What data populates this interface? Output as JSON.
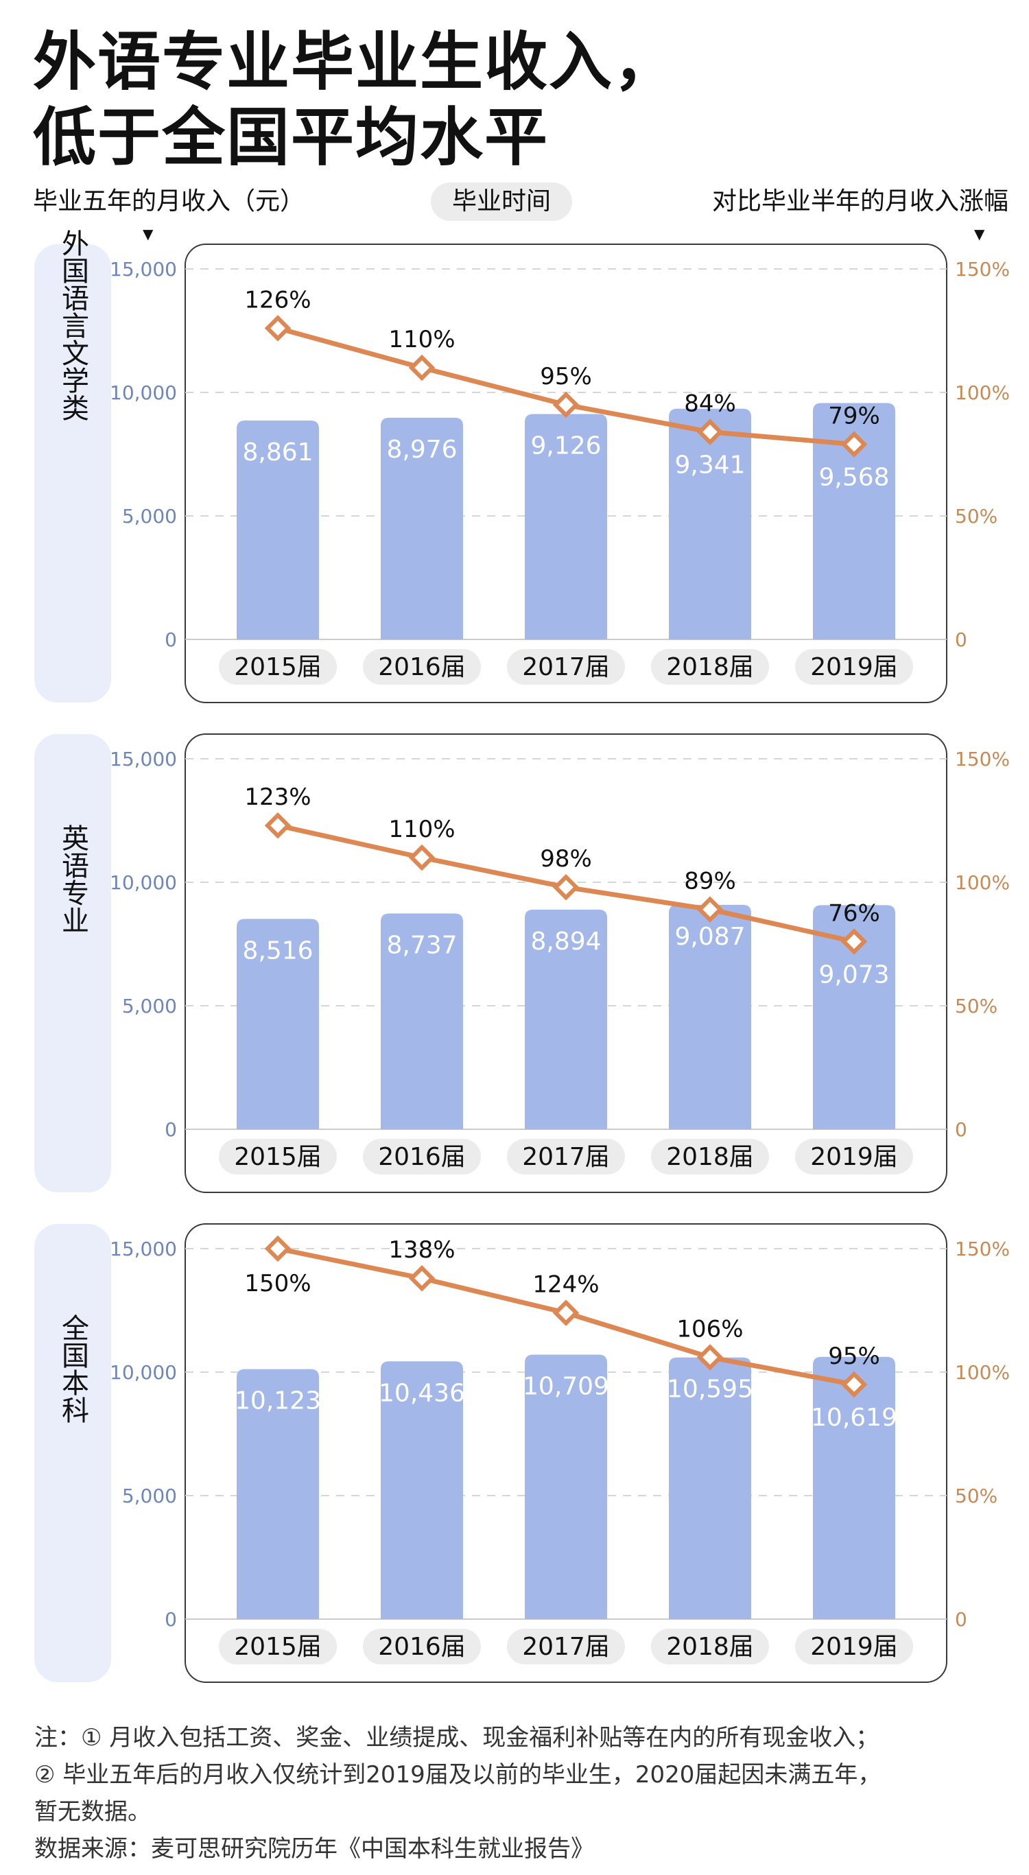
{
  "title": [
    "外语专业毕业生收入，",
    "低于全国平均水平"
  ],
  "header": {
    "left_label": "毕业五年的月收入（元）",
    "middle_label": "毕业时间",
    "right_label": "对比毕业半年的月收入涨幅",
    "arrow": "▼"
  },
  "colors": {
    "bar": "#a3b8e8",
    "line": "#dd8753",
    "left_axis": "#6f86b9",
    "right_axis": "#c78a56",
    "panel_label_bg": "#eaeefa",
    "category_pill": "#ececec"
  },
  "chart_data": [
    {
      "type": "bar",
      "panel_label": "外国语言文学类",
      "categories": [
        "2015届",
        "2016届",
        "2017届",
        "2018届",
        "2019届"
      ],
      "series": [
        {
          "name": "",
          "type": "bar",
          "axis": "left",
          "values": [
            8861,
            8976,
            9126,
            9341,
            9568
          ],
          "labels": [
            "8,861",
            "8,976",
            "9,126",
            "9,341",
            "9,568"
          ]
        },
        {
          "name": "",
          "type": "line",
          "axis": "right",
          "values": [
            126,
            110,
            95,
            84,
            79
          ],
          "labels": [
            "126%",
            "110%",
            "95%",
            "84%",
            "79%"
          ]
        }
      ],
      "y_left": {
        "range": [
          0,
          15000
        ],
        "ticks": [
          "0",
          "5,000",
          "10,000",
          "15,000"
        ]
      },
      "y_right": {
        "range": [
          0,
          150
        ],
        "ticks": [
          "0",
          "50%",
          "100%",
          "150%"
        ]
      },
      "grid": true
    },
    {
      "type": "bar",
      "panel_label": "英语专业",
      "categories": [
        "2015届",
        "2016届",
        "2017届",
        "2018届",
        "2019届"
      ],
      "series": [
        {
          "name": "",
          "type": "bar",
          "axis": "left",
          "values": [
            8516,
            8737,
            8894,
            9087,
            9073
          ],
          "labels": [
            "8,516",
            "8,737",
            "8,894",
            "9,087",
            "9,073"
          ]
        },
        {
          "name": "",
          "type": "line",
          "axis": "right",
          "values": [
            123,
            110,
            98,
            89,
            76
          ],
          "labels": [
            "123%",
            "110%",
            "98%",
            "89%",
            "76%"
          ]
        }
      ],
      "y_left": {
        "range": [
          0,
          15000
        ],
        "ticks": [
          "0",
          "5,000",
          "10,000",
          "15,000"
        ]
      },
      "y_right": {
        "range": [
          0,
          150
        ],
        "ticks": [
          "0",
          "50%",
          "100%",
          "150%"
        ]
      },
      "grid": true
    },
    {
      "type": "bar",
      "panel_label": "全国本科",
      "categories": [
        "2015届",
        "2016届",
        "2017届",
        "2018届",
        "2019届"
      ],
      "series": [
        {
          "name": "",
          "type": "bar",
          "axis": "left",
          "values": [
            10123,
            10436,
            10709,
            10595,
            10619
          ],
          "labels": [
            "10,123",
            "10,436",
            "10,709",
            "10,595",
            "10,619"
          ]
        },
        {
          "name": "",
          "type": "line",
          "axis": "right",
          "values": [
            150,
            138,
            124,
            106,
            95
          ],
          "labels": [
            "150%",
            "138%",
            "124%",
            "106%",
            "95%"
          ]
        }
      ],
      "y_left": {
        "range": [
          0,
          15000
        ],
        "ticks": [
          "0",
          "5,000",
          "10,000",
          "15,000"
        ]
      },
      "y_right": {
        "range": [
          0,
          150
        ],
        "ticks": [
          "0",
          "50%",
          "100%",
          "150%"
        ]
      },
      "grid": true
    }
  ],
  "notes": [
    "注：① 月收入包括工资、奖金、业绩提成、现金福利补贴等在内的所有现金收入；",
    "② 毕业五年后的月收入仅统计到2019届及以前的毕业生，2020届起因未满五年，",
    "暂无数据。",
    "数据来源：麦可思研究院历年《中国本科生就业报告》"
  ]
}
